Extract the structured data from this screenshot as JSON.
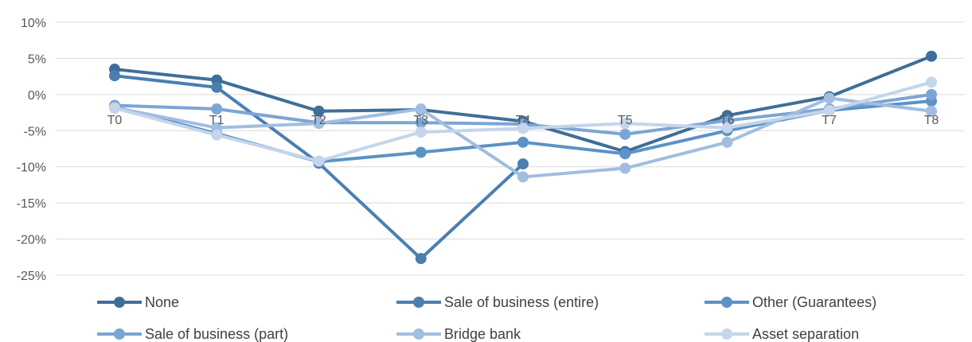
{
  "chart_data": {
    "type": "line",
    "title": "",
    "xlabel": "",
    "ylabel": "",
    "categories": [
      "T0",
      "T1",
      "T2",
      "T3",
      "T4",
      "T5",
      "T6",
      "T7",
      "T8"
    ],
    "y_ticks": [
      "10%",
      "5%",
      "0%",
      "-5%",
      "-10%",
      "-15%",
      "-20%",
      "-25%"
    ],
    "ylim": [
      -25,
      10
    ],
    "y_unit": "%",
    "grid": true,
    "legend_position": "bottom",
    "series": [
      {
        "name": "None",
        "color": "#3f6e98",
        "values": [
          3.5,
          2.0,
          -2.3,
          -2.1,
          -3.7,
          -7.9,
          -2.9,
          -0.3,
          5.3
        ]
      },
      {
        "name": "Sale of business (entire)",
        "color": "#4a7fb0",
        "values": [
          2.6,
          1.0,
          -9.5,
          -22.7,
          -9.6,
          null,
          null,
          null,
          null
        ]
      },
      {
        "name": "Other (Guarantees)",
        "color": "#5b92c7",
        "values": [
          -1.7,
          -5.4,
          -9.3,
          -8.0,
          -6.6,
          -8.2,
          -5.0,
          -2.2,
          -0.9
        ]
      },
      {
        "name": "Sale of business (part)",
        "color": "#7ba5d4",
        "values": [
          -1.5,
          -2.0,
          -3.9,
          -3.9,
          -4.1,
          -5.5,
          -3.6,
          -2.0,
          0.0
        ]
      },
      {
        "name": "Bridge bank",
        "color": "#a1bde0",
        "values": [
          -1.8,
          -4.6,
          -4.0,
          -2.0,
          -11.4,
          -10.2,
          -6.6,
          -0.5,
          -2.3
        ]
      },
      {
        "name": "Asset separation",
        "color": "#c4d5ec",
        "values": [
          -1.9,
          -5.6,
          -9.2,
          -5.2,
          -4.7,
          -4.0,
          -4.6,
          -2.2,
          1.7
        ]
      }
    ]
  }
}
